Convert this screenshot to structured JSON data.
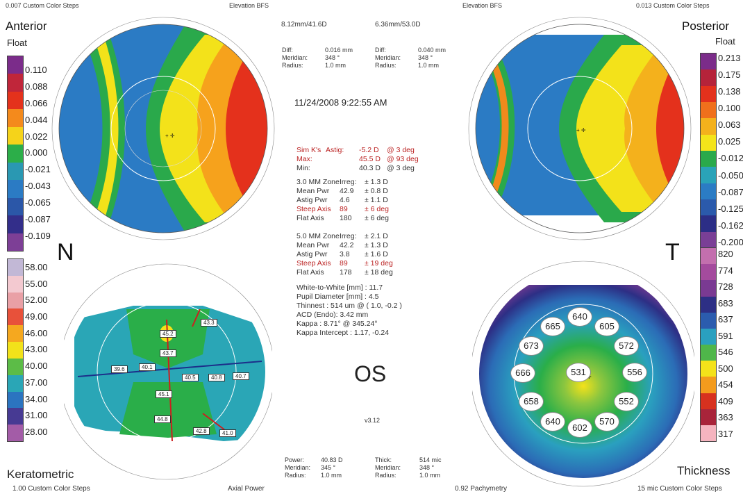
{
  "top_left_steps": "0.007 Custom Color Steps",
  "top_mid_label": "Elevation BFS",
  "top_right_label": "Elevation BFS",
  "top_right_steps": "0.013 Custom Color Steps",
  "anterior": {
    "title": "Anterior",
    "subtitle": "Float",
    "scale": [
      "0.110",
      "0.088",
      "0.066",
      "0.044",
      "0.022",
      "0.000",
      "-0.021",
      "-0.043",
      "-0.065",
      "-0.087",
      "-0.109"
    ]
  },
  "posterior": {
    "title": "Posterior",
    "subtitle": "Float",
    "scale": [
      "0.213",
      "0.175",
      "0.138",
      "0.100",
      "0.063",
      "0.025",
      "-0.012",
      "-0.050",
      "-0.087",
      "-0.125",
      "-0.162",
      "-0.200"
    ]
  },
  "kerato_scale": [
    "58.00",
    "55.00",
    "52.00",
    "49.00",
    "46.00",
    "43.00",
    "40.00",
    "37.00",
    "34.00",
    "31.00",
    "28.00"
  ],
  "thickness_scale": [
    "820",
    "774",
    "728",
    "683",
    "637",
    "591",
    "546",
    "500",
    "454",
    "409",
    "363",
    "317"
  ],
  "bfs": {
    "ant": "8.12mm/41.6D",
    "post": "6.36mm/53.0D"
  },
  "diff_ant": {
    "label1": "Diff:",
    "val1": "0.016 mm",
    "label2": "Meridian:",
    "val2": "348 °",
    "label3": "Radius:",
    "val3": "1.0 mm"
  },
  "diff_post": {
    "label1": "Diff:",
    "val1": "0.040 mm",
    "label2": "Meridian:",
    "val2": "348 °",
    "label3": "Radius:",
    "val3": "1.0 mm"
  },
  "datetime": "11/24/2008 9:22:55 AM",
  "simk": [
    {
      "a": "Sim K's",
      "b": "Astig:",
      "c": "-5.2 D",
      "d": "@ 3 deg",
      "red": true
    },
    {
      "a": "Max:",
      "b": "",
      "c": "45.5 D",
      "d": "@ 93 deg",
      "red": true
    },
    {
      "a": "Min:",
      "b": "",
      "c": "40.3 D",
      "d": "@ 3 deg",
      "red": false
    }
  ],
  "zone3": [
    {
      "a": "3.0 MM Zone:",
      "b": "Irreg:",
      "c": "± 1.3 D",
      "red": false
    },
    {
      "a": "Mean Pwr",
      "b": "42.9",
      "c": "± 0.8 D",
      "red": false
    },
    {
      "a": "Astig Pwr",
      "b": "4.6",
      "c": "± 1.1 D",
      "red": false
    },
    {
      "a": "Steep Axis",
      "b": "89",
      "c": "± 6 deg",
      "red": true
    },
    {
      "a": "Flat Axis",
      "b": "180",
      "c": "± 6 deg",
      "red": false
    }
  ],
  "zone5": [
    {
      "a": "5.0 MM Zone:",
      "b": "Irreg:",
      "c": "± 2.1 D",
      "red": false
    },
    {
      "a": "Mean Pwr",
      "b": "42.2",
      "c": "± 1.3 D",
      "red": false
    },
    {
      "a": "Astig Pwr",
      "b": "3.8",
      "c": "± 1.6 D",
      "red": false
    },
    {
      "a": "Steep Axis",
      "b": "89",
      "c": "± 19 deg",
      "red": true
    },
    {
      "a": "Flat Axis",
      "b": "178",
      "c": "± 18 deg",
      "red": false
    }
  ],
  "extra": [
    "White-to-White [mm] : 11.7",
    "Pupil Diameter [mm] :  4.5",
    "Thinnest : 514 um @ ( 1.0, -0.2 )",
    "ACD (Endo): 3.42 mm",
    "Kappa : 8.71° @ 345.24°",
    "Kappa Intercept : 1.17, -0.24"
  ],
  "N": "N",
  "T": "T",
  "OS": "OS",
  "version": "v3.12",
  "kerato_title": "Keratometric",
  "kerato_steps": "1.00 Custom Color Steps",
  "axial_power": "Axial Power",
  "pachymetry": "0.92 Pachymetry",
  "thickness_title": "Thickness",
  "thickness_steps": "15 mic Custom Color Steps",
  "bottom_power": {
    "l1": "Power:",
    "v1": "40.83 D",
    "l2": "Meridian:",
    "v2": "345 °",
    "l3": "Radius:",
    "v3": "1.0 mm"
  },
  "bottom_thick": {
    "l1": "Thick:",
    "v1": "514 mic",
    "l2": "Meridian:",
    "v2": "348 °",
    "l3": "Radius:",
    "v3": "1.0 mm"
  },
  "kerato_points": [
    "43.3",
    "45.2",
    "43.7",
    "39.6",
    "40.1",
    "40.5",
    "40.8",
    "40.7",
    "45.1",
    "44.8",
    "42.8",
    "41.0"
  ],
  "thick_points": [
    "665",
    "640",
    "605",
    "673",
    "572",
    "666",
    "531",
    "556",
    "658",
    "552",
    "640",
    "602",
    "570"
  ],
  "colors": {
    "red": "#d7261e",
    "yellow": "#f4e21a",
    "green": "#2cae49",
    "blue": "#2d7ec3",
    "teal": "#2aa8b8"
  }
}
